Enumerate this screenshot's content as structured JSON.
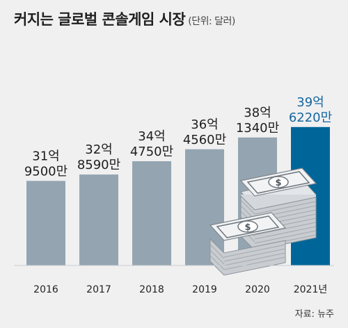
{
  "header": {
    "title": "커지는 글로벌 콘솔게임 시장",
    "unit": "(단위: 달러)"
  },
  "source": "자료: 뉴주",
  "colors": {
    "bar": "#94a5b1",
    "highlight_bar": "#006699",
    "highlight_text": "#1466a0",
    "text": "#1e1e1e",
    "background": "#f0f0f1"
  },
  "chart_data": {
    "type": "bar",
    "categories": [
      "2016",
      "2017",
      "2018",
      "2019",
      "2020",
      "2021년"
    ],
    "values": [
      3195000000,
      3285900000,
      3475000000,
      3645600000,
      3813400000,
      3962200000
    ],
    "value_labels": [
      [
        "31억",
        "9500만"
      ],
      [
        "32억",
        "8590만"
      ],
      [
        "34억",
        "4750만"
      ],
      [
        "36억",
        "4560만"
      ],
      [
        "38억",
        "1340만"
      ],
      [
        "39억",
        "6220만"
      ]
    ],
    "highlight_index": 5,
    "title": "커지는 글로벌 콘솔게임 시장",
    "ylabel": "(단위: 달러)",
    "grid": false,
    "illustration": "money-stacks-icon"
  }
}
